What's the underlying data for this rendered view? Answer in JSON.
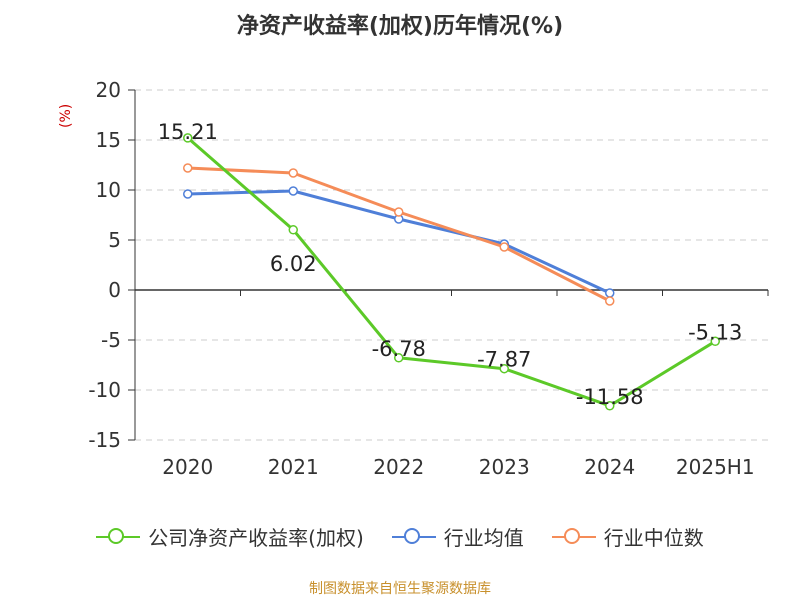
{
  "title": "净资产收益率(加权)历年情况(%)",
  "unit_label": "(%)",
  "source": "制图数据来自恒生聚源数据库",
  "chart_data": {
    "type": "line",
    "title": "净资产收益率(加权)历年情况(%)",
    "ylabel": "(%)",
    "categories": [
      "2020",
      "2021",
      "2022",
      "2023",
      "2024",
      "2025H1"
    ],
    "ylim": [
      -15,
      20
    ],
    "yticks": [
      20,
      15,
      10,
      5,
      0,
      -5,
      -10,
      -15
    ],
    "grid": true,
    "legend_position": "bottom",
    "series": [
      {
        "name": "公司净资产收益率(加权)",
        "color": "#5cc928",
        "values": [
          15.21,
          6.02,
          -6.78,
          -7.87,
          -11.58,
          -5.13
        ],
        "labels": [
          "15.21",
          "6.02",
          "-6.78",
          "-7.87",
          "-11.58",
          "-5.13"
        ]
      },
      {
        "name": "行业均值",
        "color": "#4f7fd8",
        "values": [
          9.6,
          9.9,
          7.1,
          4.6,
          -0.3,
          null
        ]
      },
      {
        "name": "行业中位数",
        "color": "#f58c58",
        "values": [
          12.2,
          11.7,
          7.8,
          4.3,
          -1.1,
          null
        ]
      }
    ]
  }
}
